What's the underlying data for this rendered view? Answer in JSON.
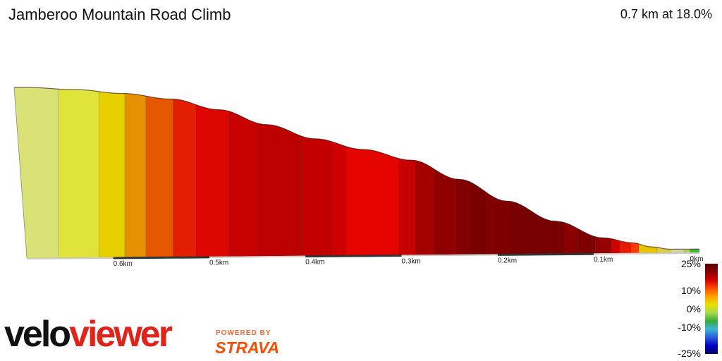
{
  "header": {
    "title": "Jamberoo Mountain Road Climb",
    "summary": "0.7 km at 18.0%"
  },
  "chart_data": {
    "type": "area",
    "title": "Jamberoo Mountain Road Climb",
    "subtitle": "0.7 km at 18.0%",
    "x_unit": "km",
    "x_direction": "reversed",
    "xlim": [
      0,
      0.7
    ],
    "x_ticks": [
      0.6,
      0.5,
      0.4,
      0.3,
      0.2,
      0.1,
      0
    ],
    "x_tick_labels": [
      "0.6km",
      "0.5km",
      "0.4km",
      "0.3km",
      "0.2km",
      "0.1km",
      "0km"
    ],
    "elevation_profile": {
      "x": [
        0.7,
        0.65,
        0.6,
        0.55,
        0.5,
        0.45,
        0.4,
        0.35,
        0.3,
        0.25,
        0.2,
        0.15,
        0.1,
        0.07,
        0.05,
        0.03,
        0.0
      ],
      "height_fraction": [
        1.0,
        0.985,
        0.96,
        0.925,
        0.86,
        0.77,
        0.685,
        0.62,
        0.555,
        0.44,
        0.31,
        0.19,
        0.09,
        0.06,
        0.035,
        0.02,
        0.02
      ]
    },
    "gradient_segments": [
      {
        "from": 0.7,
        "to": 0.667,
        "color": "#d8e276"
      },
      {
        "from": 0.667,
        "to": 0.625,
        "color": "#e0e33a"
      },
      {
        "from": 0.625,
        "to": 0.598,
        "color": "#e8cf00"
      },
      {
        "from": 0.598,
        "to": 0.576,
        "color": "#e69100"
      },
      {
        "from": 0.576,
        "to": 0.548,
        "color": "#e65800"
      },
      {
        "from": 0.548,
        "to": 0.524,
        "color": "#e21f00"
      },
      {
        "from": 0.524,
        "to": 0.49,
        "color": "#dd0600"
      },
      {
        "from": 0.49,
        "to": 0.46,
        "color": "#c80000"
      },
      {
        "from": 0.46,
        "to": 0.415,
        "color": "#bc0000"
      },
      {
        "from": 0.415,
        "to": 0.383,
        "color": "#c20000"
      },
      {
        "from": 0.383,
        "to": 0.367,
        "color": "#cf0000"
      },
      {
        "from": 0.367,
        "to": 0.313,
        "color": "#e40400"
      },
      {
        "from": 0.313,
        "to": 0.295,
        "color": "#c60000"
      },
      {
        "from": 0.295,
        "to": 0.276,
        "color": "#a30000"
      },
      {
        "from": 0.276,
        "to": 0.254,
        "color": "#8f0000"
      },
      {
        "from": 0.254,
        "to": 0.237,
        "color": "#830000"
      },
      {
        "from": 0.237,
        "to": 0.222,
        "color": "#780000"
      },
      {
        "from": 0.222,
        "to": 0.197,
        "color": "#800000"
      },
      {
        "from": 0.197,
        "to": 0.142,
        "color": "#770000"
      },
      {
        "from": 0.142,
        "to": 0.127,
        "color": "#8a0000"
      },
      {
        "from": 0.127,
        "to": 0.108,
        "color": "#7e0000"
      },
      {
        "from": 0.108,
        "to": 0.092,
        "color": "#970000"
      },
      {
        "from": 0.092,
        "to": 0.083,
        "color": "#d10000"
      },
      {
        "from": 0.083,
        "to": 0.071,
        "color": "#ea1a00"
      },
      {
        "from": 0.071,
        "to": 0.063,
        "color": "#ff3a00"
      },
      {
        "from": 0.063,
        "to": 0.044,
        "color": "#e6c200"
      },
      {
        "from": 0.044,
        "to": 0.03,
        "color": "#d9cc4a"
      },
      {
        "from": 0.03,
        "to": 0.016,
        "color": "#d2d89a"
      },
      {
        "from": 0.016,
        "to": 0.01,
        "color": "#b7d460"
      },
      {
        "from": 0.01,
        "to": 0.0,
        "color": "#3fb83a"
      }
    ],
    "legend": {
      "title": "",
      "ticks": [
        {
          "label": "25%",
          "value": 25
        },
        {
          "label": "10%",
          "value": 10
        },
        {
          "label": "0%",
          "value": 0
        },
        {
          "label": "-10%",
          "value": -10
        },
        {
          "label": "-25%",
          "value": -25
        }
      ],
      "stops": [
        "#5a0000",
        "#8a0000",
        "#d40000",
        "#ff4a00",
        "#ffa200",
        "#e8e000",
        "#a8d84a",
        "#3aaa3a",
        "#3ab4d8",
        "#2a5ad8",
        "#0000c8",
        "#000066"
      ]
    }
  },
  "branding": {
    "logo_part1": "velo",
    "logo_part2": "viewer",
    "powered_by": "POWERED BY",
    "strava": "STRAVA"
  },
  "colors": {
    "logo_black": "#111111",
    "logo_red": "#e2231a",
    "strava_orange": "#fc4c02"
  }
}
